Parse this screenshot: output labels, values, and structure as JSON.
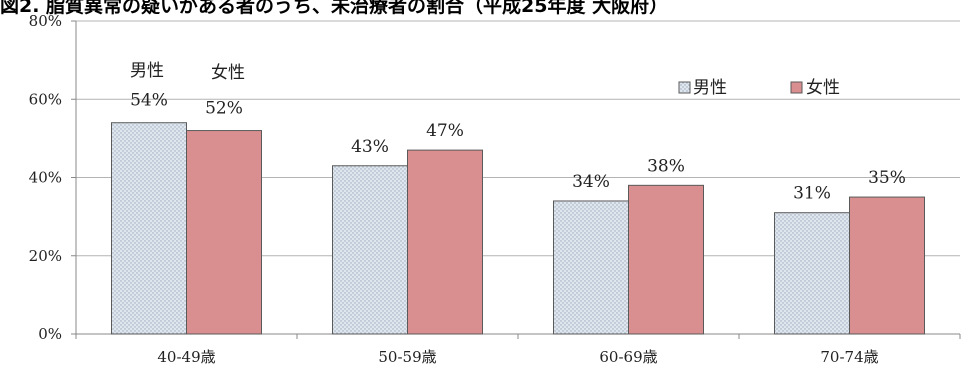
{
  "chart_data": {
    "type": "bar",
    "title": "図2. 脂質異常の疑いがある者のうち、未治療者の割合（平成25年度  大阪府）",
    "categories": [
      "40-49歳",
      "50-59歳",
      "60-69歳",
      "70-74歳"
    ],
    "series": [
      {
        "name": "男性",
        "values": [
          54,
          43,
          34,
          31
        ],
        "labels": [
          "54%",
          "43%",
          "34%",
          "31%"
        ]
      },
      {
        "name": "女性",
        "values": [
          52,
          47,
          38,
          35
        ],
        "labels": [
          "52%",
          "47%",
          "38%",
          "35%"
        ]
      }
    ],
    "series_tags": [
      "男性",
      "女性"
    ],
    "y_ticks": [
      "0%",
      "20%",
      "40%",
      "60%",
      "80%"
    ],
    "ylim": [
      0,
      80
    ],
    "xlabel": "",
    "ylabel": "",
    "grid": true,
    "legend": {
      "position": "top-right",
      "items": [
        "男性",
        "女性"
      ]
    },
    "colors": {
      "male_fill": "#dfe6ee",
      "male_dot": "#9aa9bd",
      "female_fill": "#d98f8f",
      "bar_stroke": "#5a5a5a",
      "grid": "#b4b4b4",
      "axis": "#888888"
    }
  }
}
